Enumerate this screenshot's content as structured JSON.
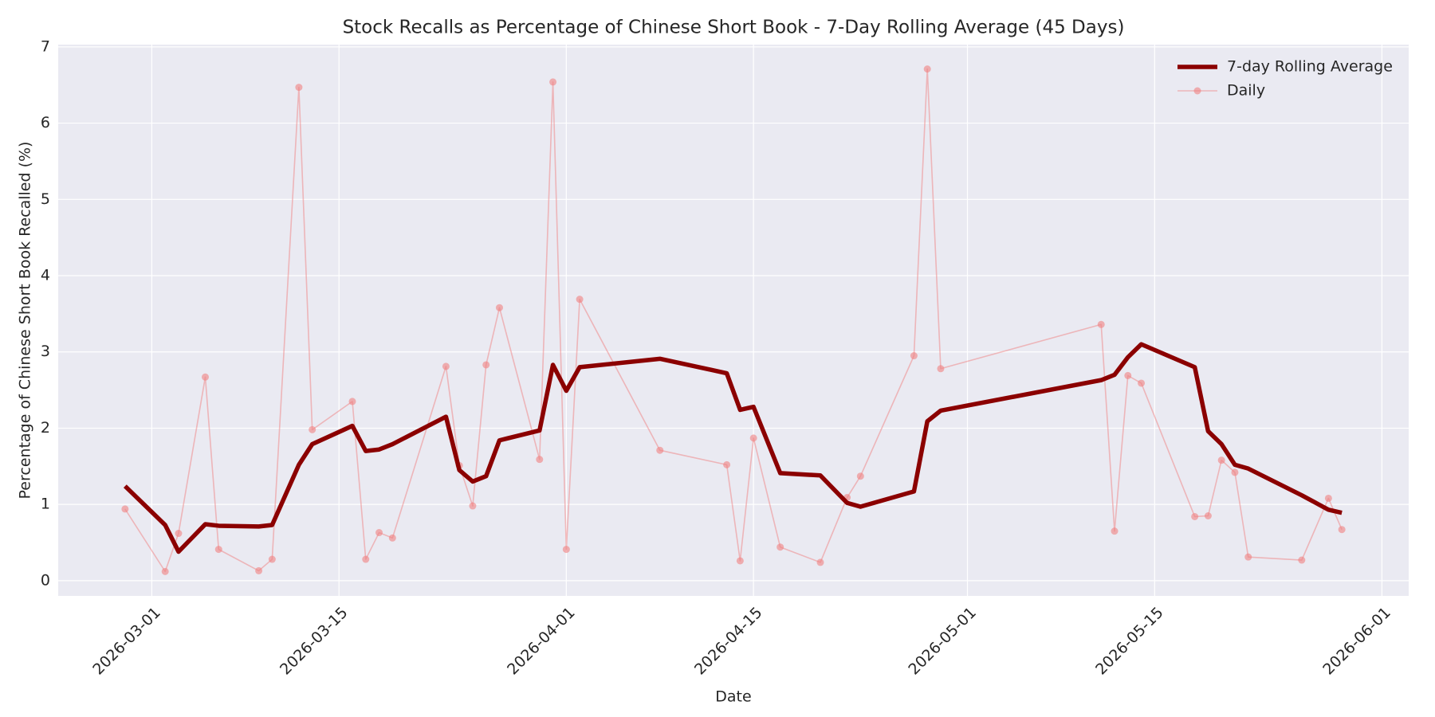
{
  "chart_data": {
    "type": "line",
    "title": "Stock Recalls as Percentage of Chinese Short Book - 7-Day Rolling Average (45 Days)",
    "xlabel": "Date",
    "ylabel": "Percentage of Chinese Short Book Recalled (%)",
    "x": [
      "2026-02-27",
      "2026-03-02",
      "2026-03-03",
      "2026-03-05",
      "2026-03-06",
      "2026-03-09",
      "2026-03-10",
      "2026-03-12",
      "2026-03-13",
      "2026-03-16",
      "2026-03-17",
      "2026-03-18",
      "2026-03-19",
      "2026-03-23",
      "2026-03-24",
      "2026-03-25",
      "2026-03-26",
      "2026-03-27",
      "2026-03-30",
      "2026-03-31",
      "2026-04-01",
      "2026-04-02",
      "2026-04-08",
      "2026-04-13",
      "2026-04-14",
      "2026-04-15",
      "2026-04-17",
      "2026-04-20",
      "2026-04-22",
      "2026-04-23",
      "2026-04-27",
      "2026-04-28",
      "2026-04-29",
      "2026-05-11",
      "2026-05-12",
      "2026-05-13",
      "2026-05-14",
      "2026-05-18",
      "2026-05-19",
      "2026-05-20",
      "2026-05-21",
      "2026-05-22",
      "2026-05-26",
      "2026-05-28",
      "2026-05-29"
    ],
    "series": [
      {
        "name": "7-day Rolling Average",
        "color": "#8b0000",
        "markers": false,
        "values": [
          1.24,
          0.73,
          0.38,
          0.74,
          0.72,
          0.71,
          0.73,
          1.52,
          1.79,
          2.03,
          1.7,
          1.72,
          1.79,
          2.15,
          1.45,
          1.3,
          1.37,
          1.84,
          1.97,
          2.83,
          2.49,
          2.8,
          2.91,
          2.72,
          2.24,
          2.28,
          1.41,
          1.38,
          1.02,
          0.97,
          1.17,
          2.09,
          2.23,
          2.63,
          2.7,
          2.93,
          3.1,
          2.8,
          1.96,
          1.79,
          1.52,
          1.47,
          1.12,
          0.93,
          0.89
        ]
      },
      {
        "name": "Daily",
        "color": "#f08080",
        "markers": true,
        "values": [
          0.94,
          0.12,
          0.62,
          2.67,
          0.41,
          0.13,
          0.28,
          6.47,
          1.98,
          2.35,
          0.28,
          0.63,
          0.56,
          2.81,
          1.51,
          0.98,
          2.83,
          3.58,
          1.59,
          6.54,
          0.41,
          3.69,
          1.71,
          1.52,
          0.26,
          1.87,
          0.44,
          0.24,
          1.09,
          1.37,
          2.95,
          6.71,
          2.78,
          3.36,
          0.65,
          2.69,
          2.59,
          0.84,
          0.85,
          1.58,
          1.42,
          0.31,
          0.27,
          1.08,
          0.67
        ]
      }
    ],
    "xlim": [
      "2026-02-22",
      "2026-06-03"
    ],
    "xticks": [
      "2026-03-01",
      "2026-03-15",
      "2026-04-01",
      "2026-04-15",
      "2026-05-01",
      "2026-05-15",
      "2026-06-01"
    ],
    "ylim": [
      -0.2,
      7.03
    ],
    "yticks": [
      0,
      1,
      2,
      3,
      4,
      5,
      6,
      7
    ],
    "grid": true,
    "legend": "upper right"
  }
}
